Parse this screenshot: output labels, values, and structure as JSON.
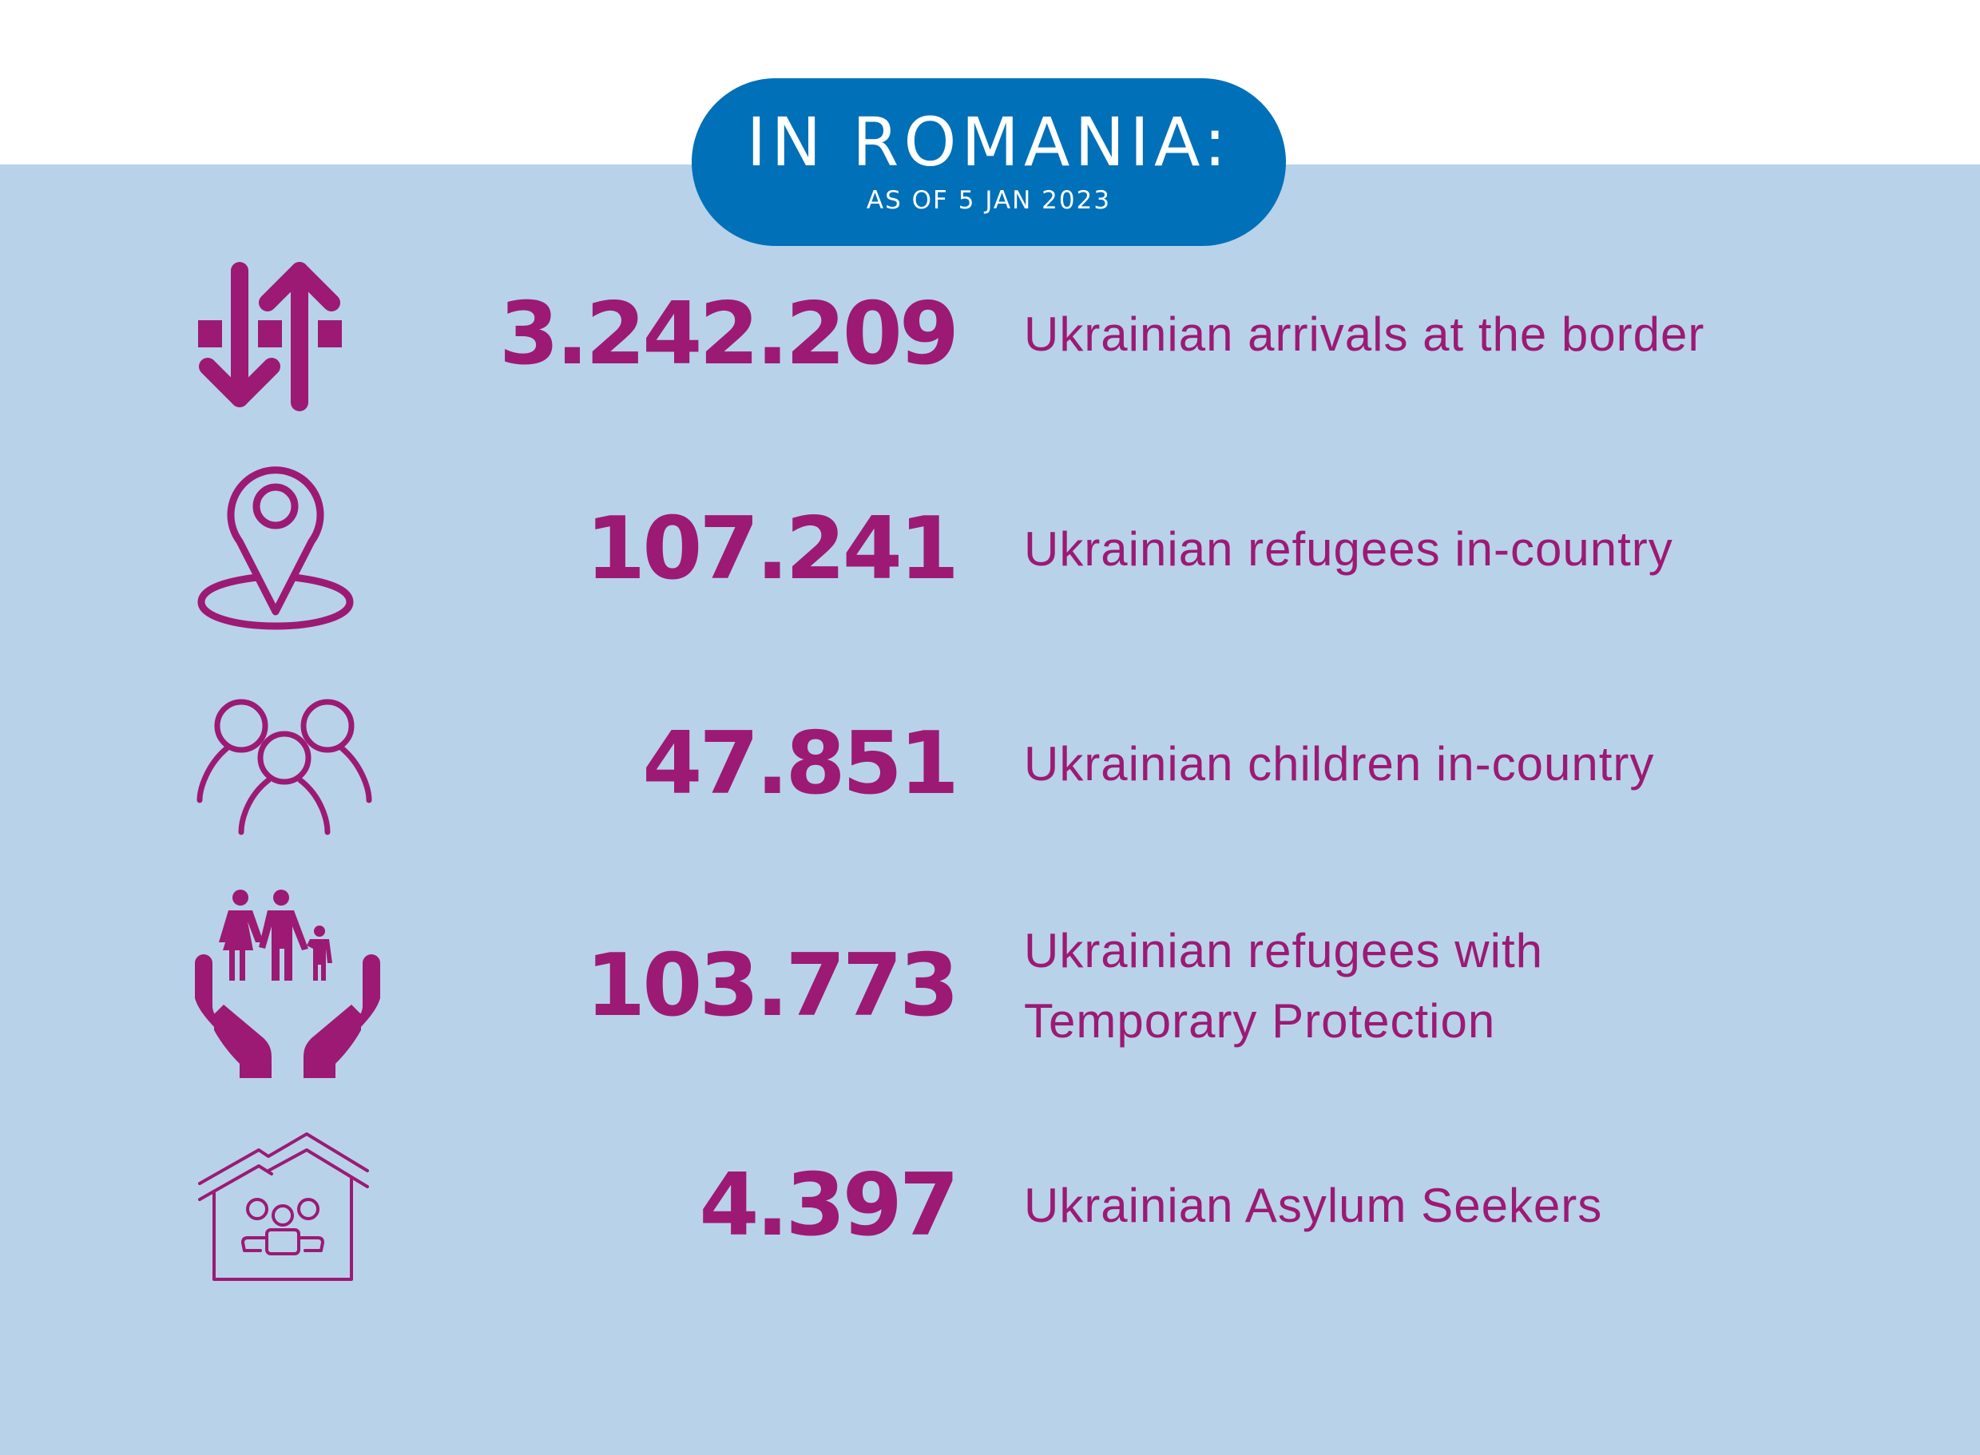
{
  "header": {
    "title": "IN ROMANIA:",
    "subtitle": "AS OF 5 JAN 2023"
  },
  "colors": {
    "accent": "#9C1A74",
    "pill": "#0070B8",
    "background": "#B8D2EA"
  },
  "stats": [
    {
      "icon": "arrows-up-down-icon",
      "value": "3.242.209",
      "label": "Ukrainian arrivals at the border"
    },
    {
      "icon": "map-pin-icon",
      "value": "107.241",
      "label": "Ukrainian refugees in-country"
    },
    {
      "icon": "children-group-icon",
      "value": "47.851",
      "label": "Ukrainian children in-country"
    },
    {
      "icon": "family-in-hands-icon",
      "value": "103.773",
      "label_line1": "Ukrainian refugees with",
      "label_line2": "Temporary Protection"
    },
    {
      "icon": "house-family-icon",
      "value": "4.397",
      "label": "Ukrainian Asylum Seekers"
    }
  ]
}
